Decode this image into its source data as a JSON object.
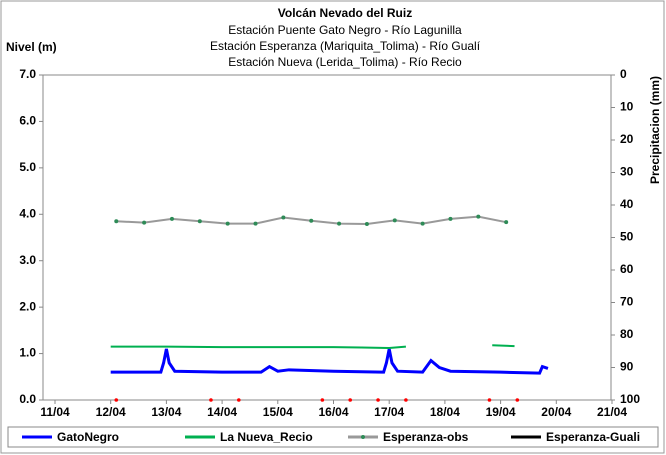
{
  "chart_data": {
    "type": "line",
    "title": "Volcán Nevado del Ruiz",
    "subtitles": [
      "Estación Puente Gato Negro - Río Lagunilla",
      "Estación Esperanza (Mariquita_Tolima) - Río Gualí",
      "Estación Nueva (Lerida_Tolima) - Río Recio"
    ],
    "ylabel": "Nivel (m)",
    "y2label": "Precipitacion (mm)",
    "xlim": [
      11,
      21
    ],
    "xticks": [
      {
        "value": 11,
        "label": "11/04"
      },
      {
        "value": 12,
        "label": "12/04"
      },
      {
        "value": 13,
        "label": "13/04"
      },
      {
        "value": 14,
        "label": "14/04"
      },
      {
        "value": 15,
        "label": "15/04"
      },
      {
        "value": 16,
        "label": "16/04"
      },
      {
        "value": 17,
        "label": "17/04"
      },
      {
        "value": 18,
        "label": "18/04"
      },
      {
        "value": 19,
        "label": "19/04"
      },
      {
        "value": 20,
        "label": "20/04"
      },
      {
        "value": 21,
        "label": "21/04"
      }
    ],
    "ylim": [
      0,
      7
    ],
    "yticks": [
      {
        "value": 0,
        "label": "0.0"
      },
      {
        "value": 1,
        "label": "1.0"
      },
      {
        "value": 2,
        "label": "2.0"
      },
      {
        "value": 3,
        "label": "3.0"
      },
      {
        "value": 4,
        "label": "4.0"
      },
      {
        "value": 5,
        "label": "5.0"
      },
      {
        "value": 6,
        "label": "6.0"
      },
      {
        "value": 7,
        "label": "7.0"
      }
    ],
    "y2lim": [
      0,
      100
    ],
    "y2_inverted": true,
    "y2ticks": [
      0,
      10,
      20,
      30,
      40,
      50,
      60,
      70,
      80,
      90,
      100
    ],
    "series": [
      {
        "name": "GatoNegro",
        "color": "#0000ff",
        "width": 3,
        "x": [
          12.0,
          12.9,
          12.95,
          13.0,
          13.05,
          13.15,
          14.0,
          14.7,
          14.85,
          15.0,
          15.2,
          16.0,
          16.9,
          16.95,
          17.0,
          17.05,
          17.15,
          17.6,
          17.75,
          17.9,
          18.1,
          19.0,
          19.7,
          19.75,
          19.85
        ],
        "values": [
          0.6,
          0.6,
          0.8,
          1.1,
          0.8,
          0.62,
          0.6,
          0.6,
          0.72,
          0.62,
          0.65,
          0.62,
          0.6,
          0.8,
          1.1,
          0.8,
          0.62,
          0.6,
          0.85,
          0.7,
          0.62,
          0.6,
          0.58,
          0.72,
          0.68
        ]
      },
      {
        "name": "La Nueva_Recio",
        "color": "#00b050",
        "width": 2,
        "x": [
          12.0,
          13.0,
          14.0,
          15.0,
          16.0,
          16.5,
          17.0,
          17.3,
          18.0,
          18.85,
          19.25
        ],
        "values": [
          1.15,
          1.15,
          1.14,
          1.14,
          1.14,
          1.13,
          1.12,
          1.15,
          null,
          1.18,
          1.16
        ]
      },
      {
        "name": "Esperanza-obs",
        "color": "#999999",
        "marker_color": "#2e8b57",
        "width": 2,
        "x": [
          12.1,
          12.6,
          13.1,
          13.6,
          14.1,
          14.6,
          15.1,
          15.6,
          16.1,
          16.6,
          17.1,
          17.6,
          18.1,
          18.6,
          19.1
        ],
        "values": [
          3.85,
          3.82,
          3.9,
          3.85,
          3.8,
          3.8,
          3.93,
          3.86,
          3.8,
          3.79,
          3.87,
          3.8,
          3.9,
          3.95,
          3.83
        ]
      },
      {
        "name": "Esperanza-Guali",
        "color": "#000000",
        "width": 2,
        "x": [],
        "values": []
      },
      {
        "color": "#ff0000",
        "width": 2,
        "x": [
          12.1,
          13.8,
          14.3,
          15.8,
          16.3,
          16.8,
          17.3,
          18.8,
          19.3
        ],
        "values": [
          0,
          0,
          0,
          0,
          0,
          0,
          0,
          0,
          0
        ]
      }
    ]
  }
}
